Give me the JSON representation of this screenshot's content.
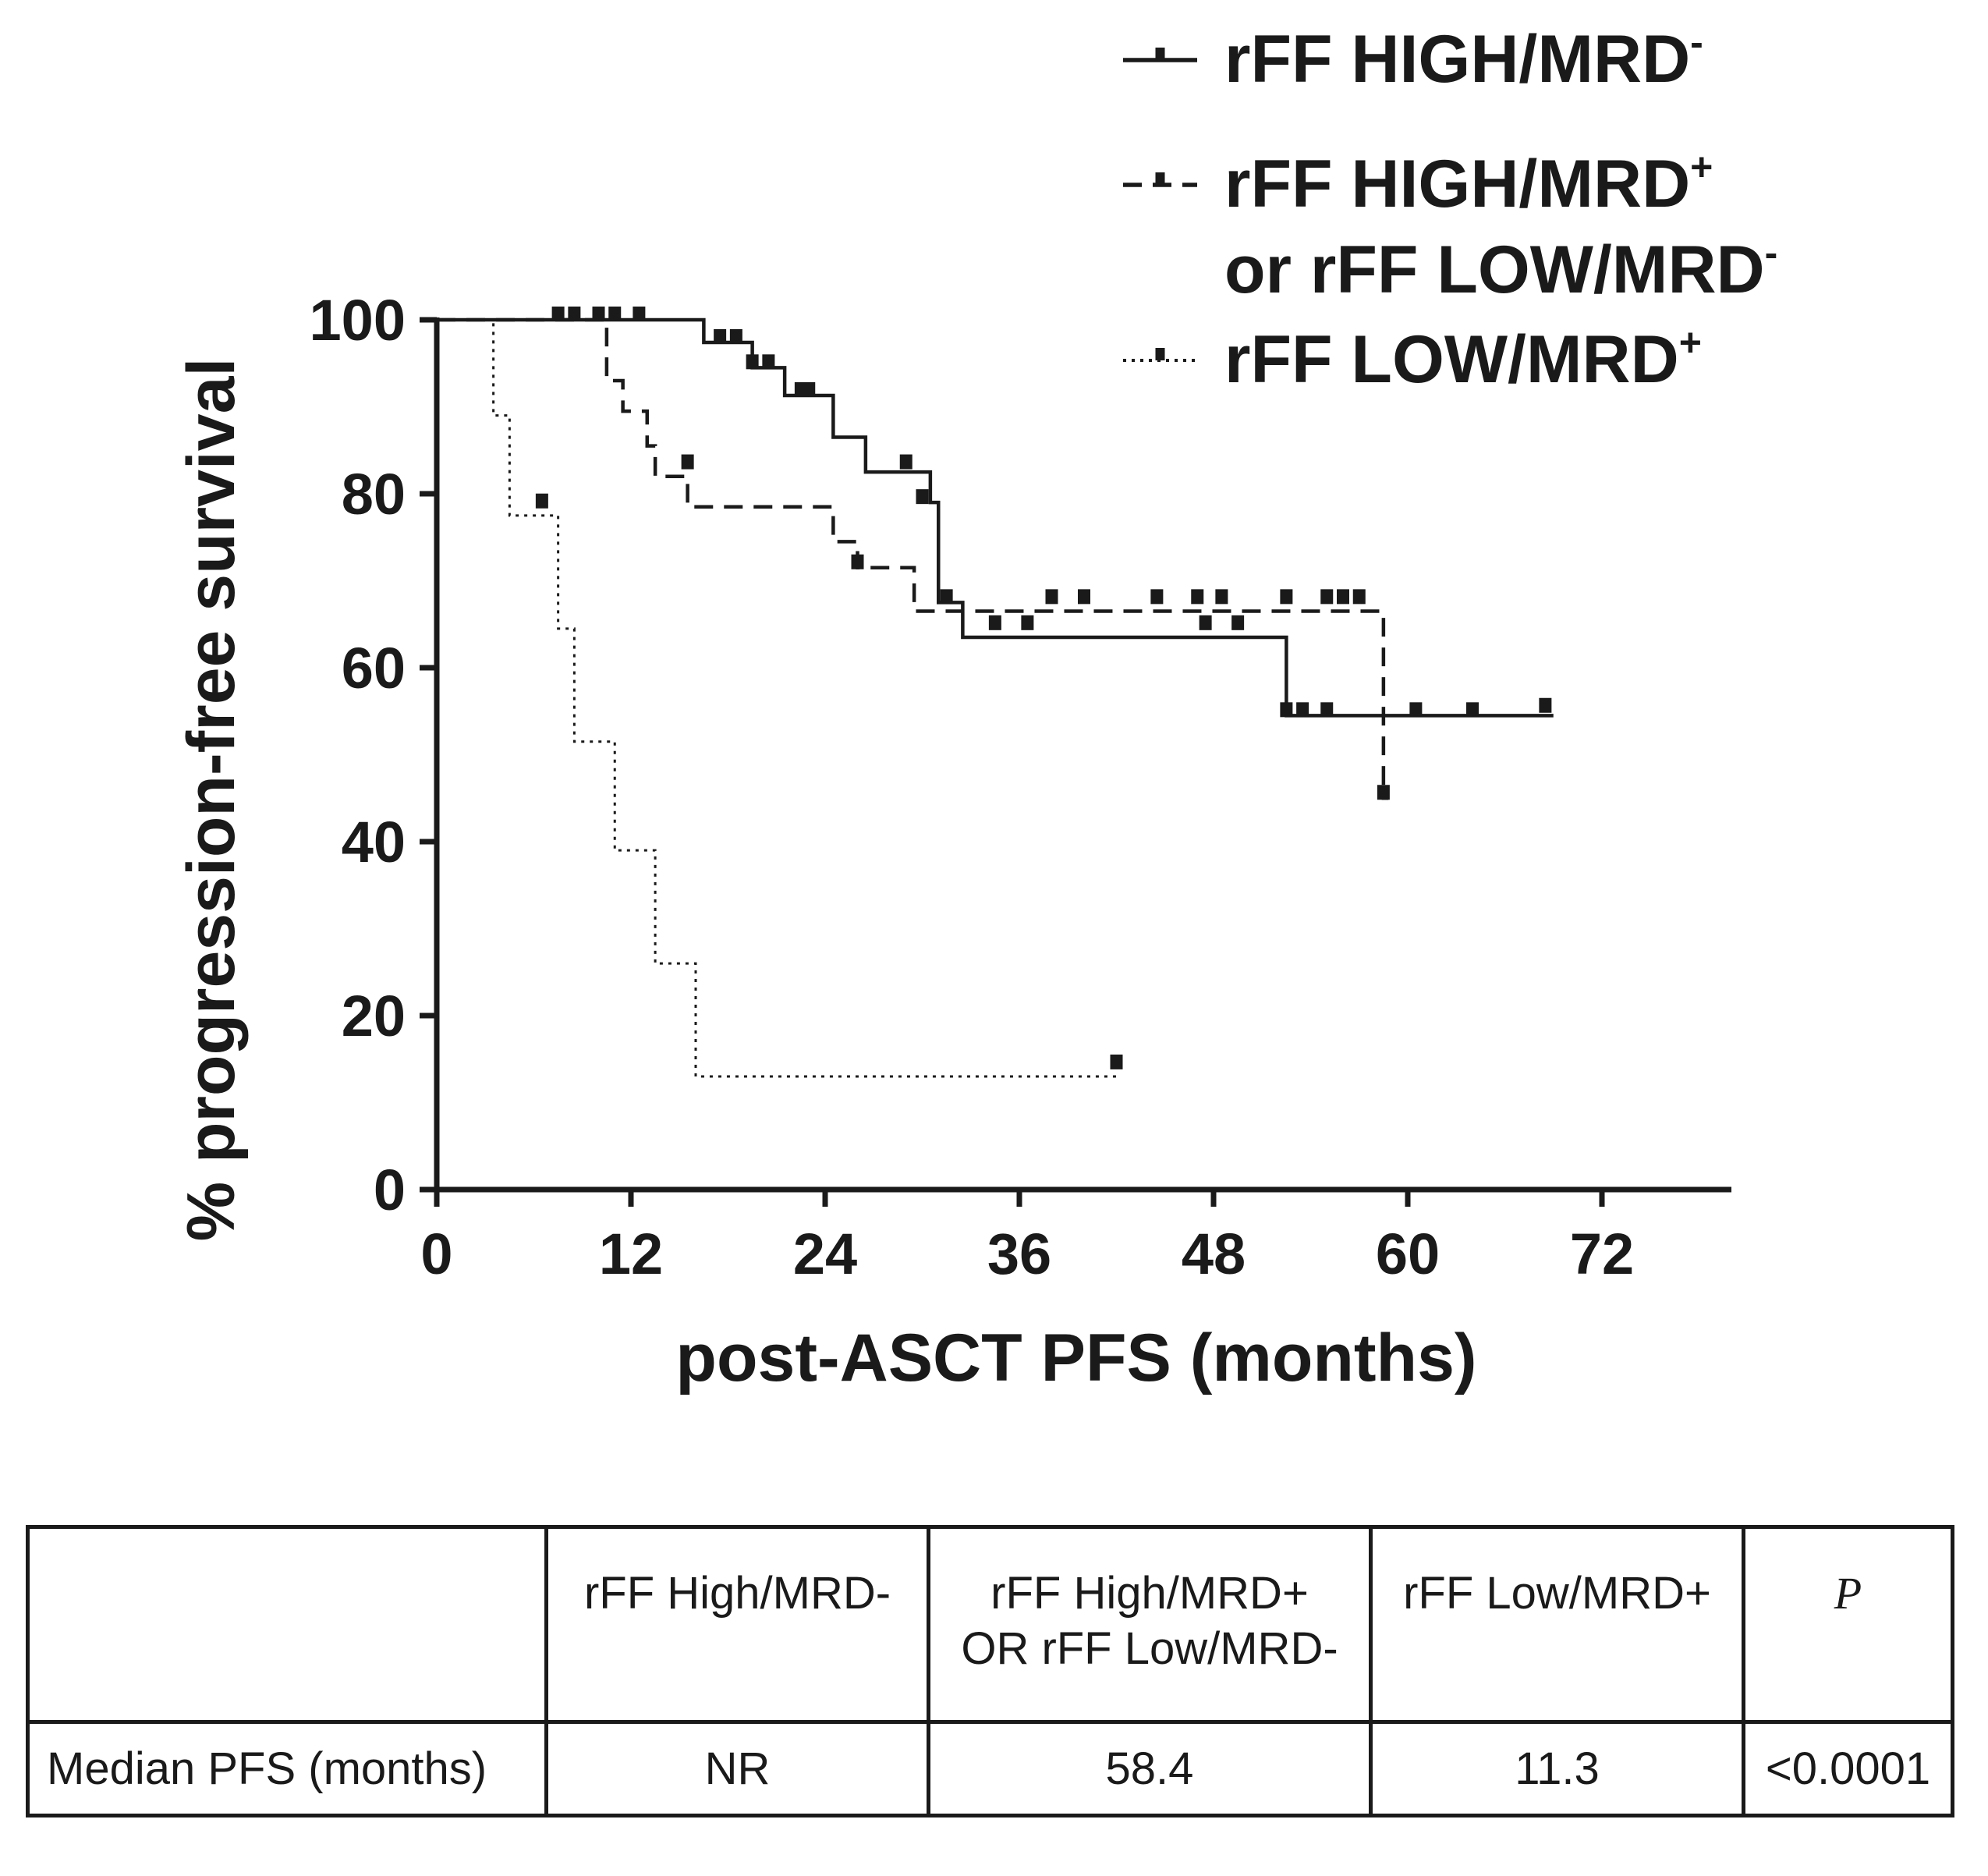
{
  "chart_data": {
    "type": "line",
    "subtype": "kaplan-meier",
    "title": "",
    "xlabel": "post-ASCT PFS (months)",
    "ylabel": "% progression-free survival",
    "xlim": [
      0,
      80
    ],
    "ylim": [
      0,
      100
    ],
    "xticks": [
      0,
      12,
      24,
      36,
      48,
      60,
      72
    ],
    "yticks": [
      0,
      20,
      40,
      60,
      80,
      100
    ],
    "grid": false,
    "legend_position": "top-right",
    "series": [
      {
        "name": "rFF HIGH/MRD",
        "name_superscript": "-",
        "line_style": "solid",
        "steps": [
          [
            0,
            100
          ],
          [
            16.5,
            97.4
          ],
          [
            19.5,
            94.5
          ],
          [
            21.5,
            91.3
          ],
          [
            24.5,
            86.5
          ],
          [
            26.5,
            82.5
          ],
          [
            30.5,
            79
          ],
          [
            31,
            67.5
          ],
          [
            32.5,
            63.5
          ],
          [
            52.5,
            54.5
          ],
          [
            69,
            54.5
          ]
        ],
        "censor": [
          [
            7.5,
            100
          ],
          [
            8.5,
            100
          ],
          [
            10,
            100
          ],
          [
            11,
            100
          ],
          [
            12.5,
            100
          ],
          [
            17.5,
            97.4
          ],
          [
            18.5,
            97.4
          ],
          [
            19.5,
            94.5
          ],
          [
            20.5,
            94.5
          ],
          [
            22.5,
            91.3
          ],
          [
            23,
            91.3
          ],
          [
            29,
            83
          ],
          [
            30,
            79
          ],
          [
            34.5,
            64.5
          ],
          [
            36.5,
            64.5
          ],
          [
            47.5,
            64.5
          ],
          [
            49.5,
            64.5
          ],
          [
            52.5,
            54.5
          ],
          [
            53.5,
            54.5
          ],
          [
            55,
            54.5
          ],
          [
            60.5,
            54.5
          ],
          [
            64,
            54.5
          ],
          [
            68.5,
            55
          ]
        ]
      },
      {
        "name": "rFF HIGH/MRD",
        "name_superscript": "+",
        "name_line2": "or rFF LOW/MRD",
        "name_line2_superscript": "-",
        "line_style": "dashed",
        "steps": [
          [
            0,
            100
          ],
          [
            10.5,
            93
          ],
          [
            11.5,
            89.5
          ],
          [
            13,
            85.5
          ],
          [
            13.5,
            82
          ],
          [
            15.5,
            78.5
          ],
          [
            24.5,
            74.5
          ],
          [
            26,
            71.5
          ],
          [
            29.5,
            66.5
          ],
          [
            58.5,
            45
          ],
          [
            58.8,
            45
          ]
        ],
        "censor": [
          [
            15.5,
            83
          ],
          [
            26,
            71.5
          ],
          [
            31.5,
            67.5
          ],
          [
            38,
            67.5
          ],
          [
            40,
            67.5
          ],
          [
            44.5,
            67.5
          ],
          [
            47,
            67.5
          ],
          [
            48.5,
            67.5
          ],
          [
            52.5,
            67.5
          ],
          [
            55,
            67.5
          ],
          [
            56,
            67.5
          ],
          [
            57,
            67.5
          ],
          [
            58.5,
            45
          ]
        ]
      },
      {
        "name": "rFF LOW/MRD",
        "name_superscript": "+",
        "line_style": "dotted",
        "steps": [
          [
            0,
            100
          ],
          [
            3.5,
            89
          ],
          [
            4.5,
            77.5
          ],
          [
            7.5,
            64.5
          ],
          [
            8.5,
            51.5
          ],
          [
            11,
            39
          ],
          [
            13.5,
            26
          ],
          [
            16,
            13
          ],
          [
            42,
            13
          ]
        ],
        "censor": [
          [
            6.5,
            78.5
          ],
          [
            42,
            14
          ]
        ]
      }
    ]
  },
  "table": {
    "headers": [
      "",
      "rFF High/MRD-",
      "rFF High/MRD+",
      "OR rFF Low/MRD-",
      "rFF Low/MRD+",
      "P"
    ],
    "row_label": "Median PFS (months)",
    "values": [
      "NR",
      "58.4",
      "11.3",
      "<0.0001"
    ]
  }
}
